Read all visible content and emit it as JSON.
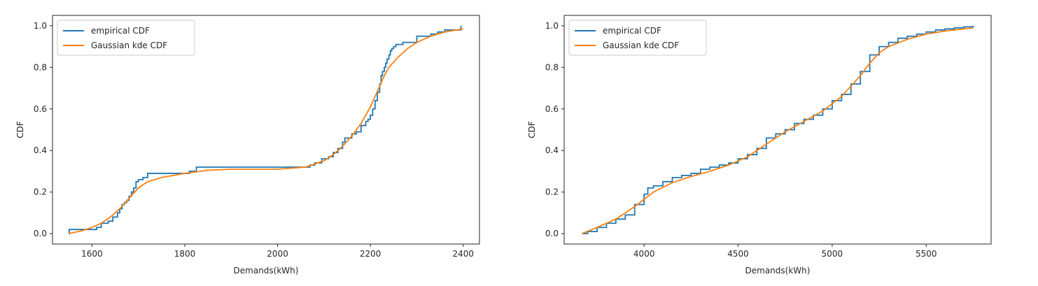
{
  "colors": {
    "empirical": "#1f77b4",
    "kde": "#ff7f0e",
    "axis": "#262626",
    "legend_border": "#cccccc"
  },
  "chart_data": [
    {
      "type": "line",
      "xlabel": "Demands(kWh)",
      "ylabel": "CDF",
      "xlim": [
        1515,
        2435
      ],
      "ylim": [
        -0.05,
        1.05
      ],
      "xticks": [
        1600,
        1800,
        2000,
        2200,
        2400
      ],
      "yticks": [
        0.0,
        0.2,
        0.4,
        0.6,
        0.8,
        1.0
      ],
      "xtick_labels": [
        "1600",
        "1800",
        "2000",
        "2200",
        "2400"
      ],
      "ytick_labels": [
        "0.0",
        "0.2",
        "0.4",
        "0.6",
        "0.8",
        "1.0"
      ],
      "legend": {
        "placement": "top-left",
        "entries": [
          "empirical CDF",
          "Gaussian kde CDF"
        ]
      },
      "grid": false,
      "series": [
        {
          "name": "empirical CDF",
          "step": true,
          "x": [
            1550,
            1551,
            1610,
            1620,
            1635,
            1645,
            1655,
            1660,
            1665,
            1670,
            1675,
            1680,
            1685,
            1690,
            1695,
            1700,
            1710,
            1720,
            1810,
            1825,
            2070,
            2080,
            2095,
            2110,
            2120,
            2130,
            2140,
            2145,
            2160,
            2170,
            2180,
            2190,
            2195,
            2200,
            2205,
            2210,
            2215,
            2220,
            2223,
            2226,
            2230,
            2233,
            2236,
            2240,
            2243,
            2246,
            2250,
            2255,
            2270,
            2300,
            2330,
            2345,
            2360,
            2395
          ],
          "y": [
            0.0,
            0.02,
            0.03,
            0.05,
            0.06,
            0.08,
            0.1,
            0.12,
            0.14,
            0.15,
            0.16,
            0.18,
            0.2,
            0.22,
            0.25,
            0.26,
            0.27,
            0.29,
            0.3,
            0.32,
            0.33,
            0.34,
            0.36,
            0.37,
            0.39,
            0.41,
            0.44,
            0.46,
            0.48,
            0.49,
            0.52,
            0.54,
            0.55,
            0.57,
            0.6,
            0.64,
            0.68,
            0.72,
            0.76,
            0.78,
            0.8,
            0.82,
            0.84,
            0.86,
            0.88,
            0.89,
            0.9,
            0.91,
            0.92,
            0.95,
            0.96,
            0.97,
            0.98,
            1.0
          ]
        },
        {
          "name": "Gaussian kde CDF",
          "step": false,
          "x": [
            1550,
            1580,
            1600,
            1620,
            1640,
            1660,
            1680,
            1700,
            1720,
            1750,
            1800,
            1850,
            1900,
            2000,
            2060,
            2080,
            2100,
            2120,
            2140,
            2160,
            2180,
            2200,
            2210,
            2220,
            2230,
            2240,
            2260,
            2280,
            2300,
            2330,
            2360,
            2400
          ],
          "y": [
            0.0,
            0.015,
            0.03,
            0.05,
            0.08,
            0.12,
            0.17,
            0.22,
            0.25,
            0.27,
            0.29,
            0.305,
            0.31,
            0.31,
            0.32,
            0.335,
            0.35,
            0.38,
            0.42,
            0.47,
            0.53,
            0.61,
            0.66,
            0.71,
            0.76,
            0.8,
            0.85,
            0.89,
            0.92,
            0.95,
            0.97,
            0.985
          ]
        }
      ]
    },
    {
      "type": "line",
      "xlabel": "Demands(kWh)",
      "ylabel": "CDF",
      "xlim": [
        3575,
        5845
      ],
      "ylim": [
        -0.05,
        1.05
      ],
      "xticks": [
        4000,
        4500,
        5000,
        5500
      ],
      "yticks": [
        0.0,
        0.2,
        0.4,
        0.6,
        0.8,
        1.0
      ],
      "xtick_labels": [
        "4000",
        "4500",
        "5000",
        "5500"
      ],
      "ytick_labels": [
        "0.0",
        "0.2",
        "0.4",
        "0.6",
        "0.8",
        "1.0"
      ],
      "legend": {
        "placement": "top-left",
        "entries": [
          "empirical CDF",
          "Gaussian kde CDF"
        ]
      },
      "grid": false,
      "series": [
        {
          "name": "empirical CDF",
          "step": true,
          "x": [
            3670,
            3700,
            3750,
            3800,
            3850,
            3900,
            3950,
            4000,
            4020,
            4050,
            4100,
            4150,
            4200,
            4250,
            4300,
            4350,
            4400,
            4450,
            4500,
            4550,
            4600,
            4650,
            4700,
            4750,
            4800,
            4850,
            4900,
            4950,
            5000,
            5050,
            5100,
            5150,
            5200,
            5250,
            5300,
            5350,
            5400,
            5450,
            5500,
            5550,
            5600,
            5650,
            5700,
            5750
          ],
          "y": [
            0.0,
            0.01,
            0.03,
            0.05,
            0.07,
            0.09,
            0.14,
            0.19,
            0.22,
            0.23,
            0.25,
            0.27,
            0.28,
            0.29,
            0.31,
            0.32,
            0.33,
            0.34,
            0.36,
            0.38,
            0.41,
            0.46,
            0.48,
            0.5,
            0.53,
            0.55,
            0.57,
            0.6,
            0.64,
            0.67,
            0.72,
            0.78,
            0.86,
            0.9,
            0.92,
            0.94,
            0.95,
            0.96,
            0.97,
            0.98,
            0.985,
            0.99,
            0.995,
            1.0
          ]
        },
        {
          "name": "Gaussian kde CDF",
          "step": false,
          "x": [
            3670,
            3750,
            3850,
            3950,
            4050,
            4150,
            4250,
            4350,
            4450,
            4550,
            4650,
            4750,
            4850,
            4950,
            5050,
            5150,
            5200,
            5250,
            5300,
            5400,
            5500,
            5600,
            5750
          ],
          "y": [
            0.0,
            0.03,
            0.07,
            0.13,
            0.2,
            0.245,
            0.275,
            0.3,
            0.33,
            0.37,
            0.43,
            0.49,
            0.54,
            0.59,
            0.66,
            0.76,
            0.82,
            0.87,
            0.9,
            0.935,
            0.96,
            0.975,
            0.99
          ]
        }
      ]
    }
  ]
}
